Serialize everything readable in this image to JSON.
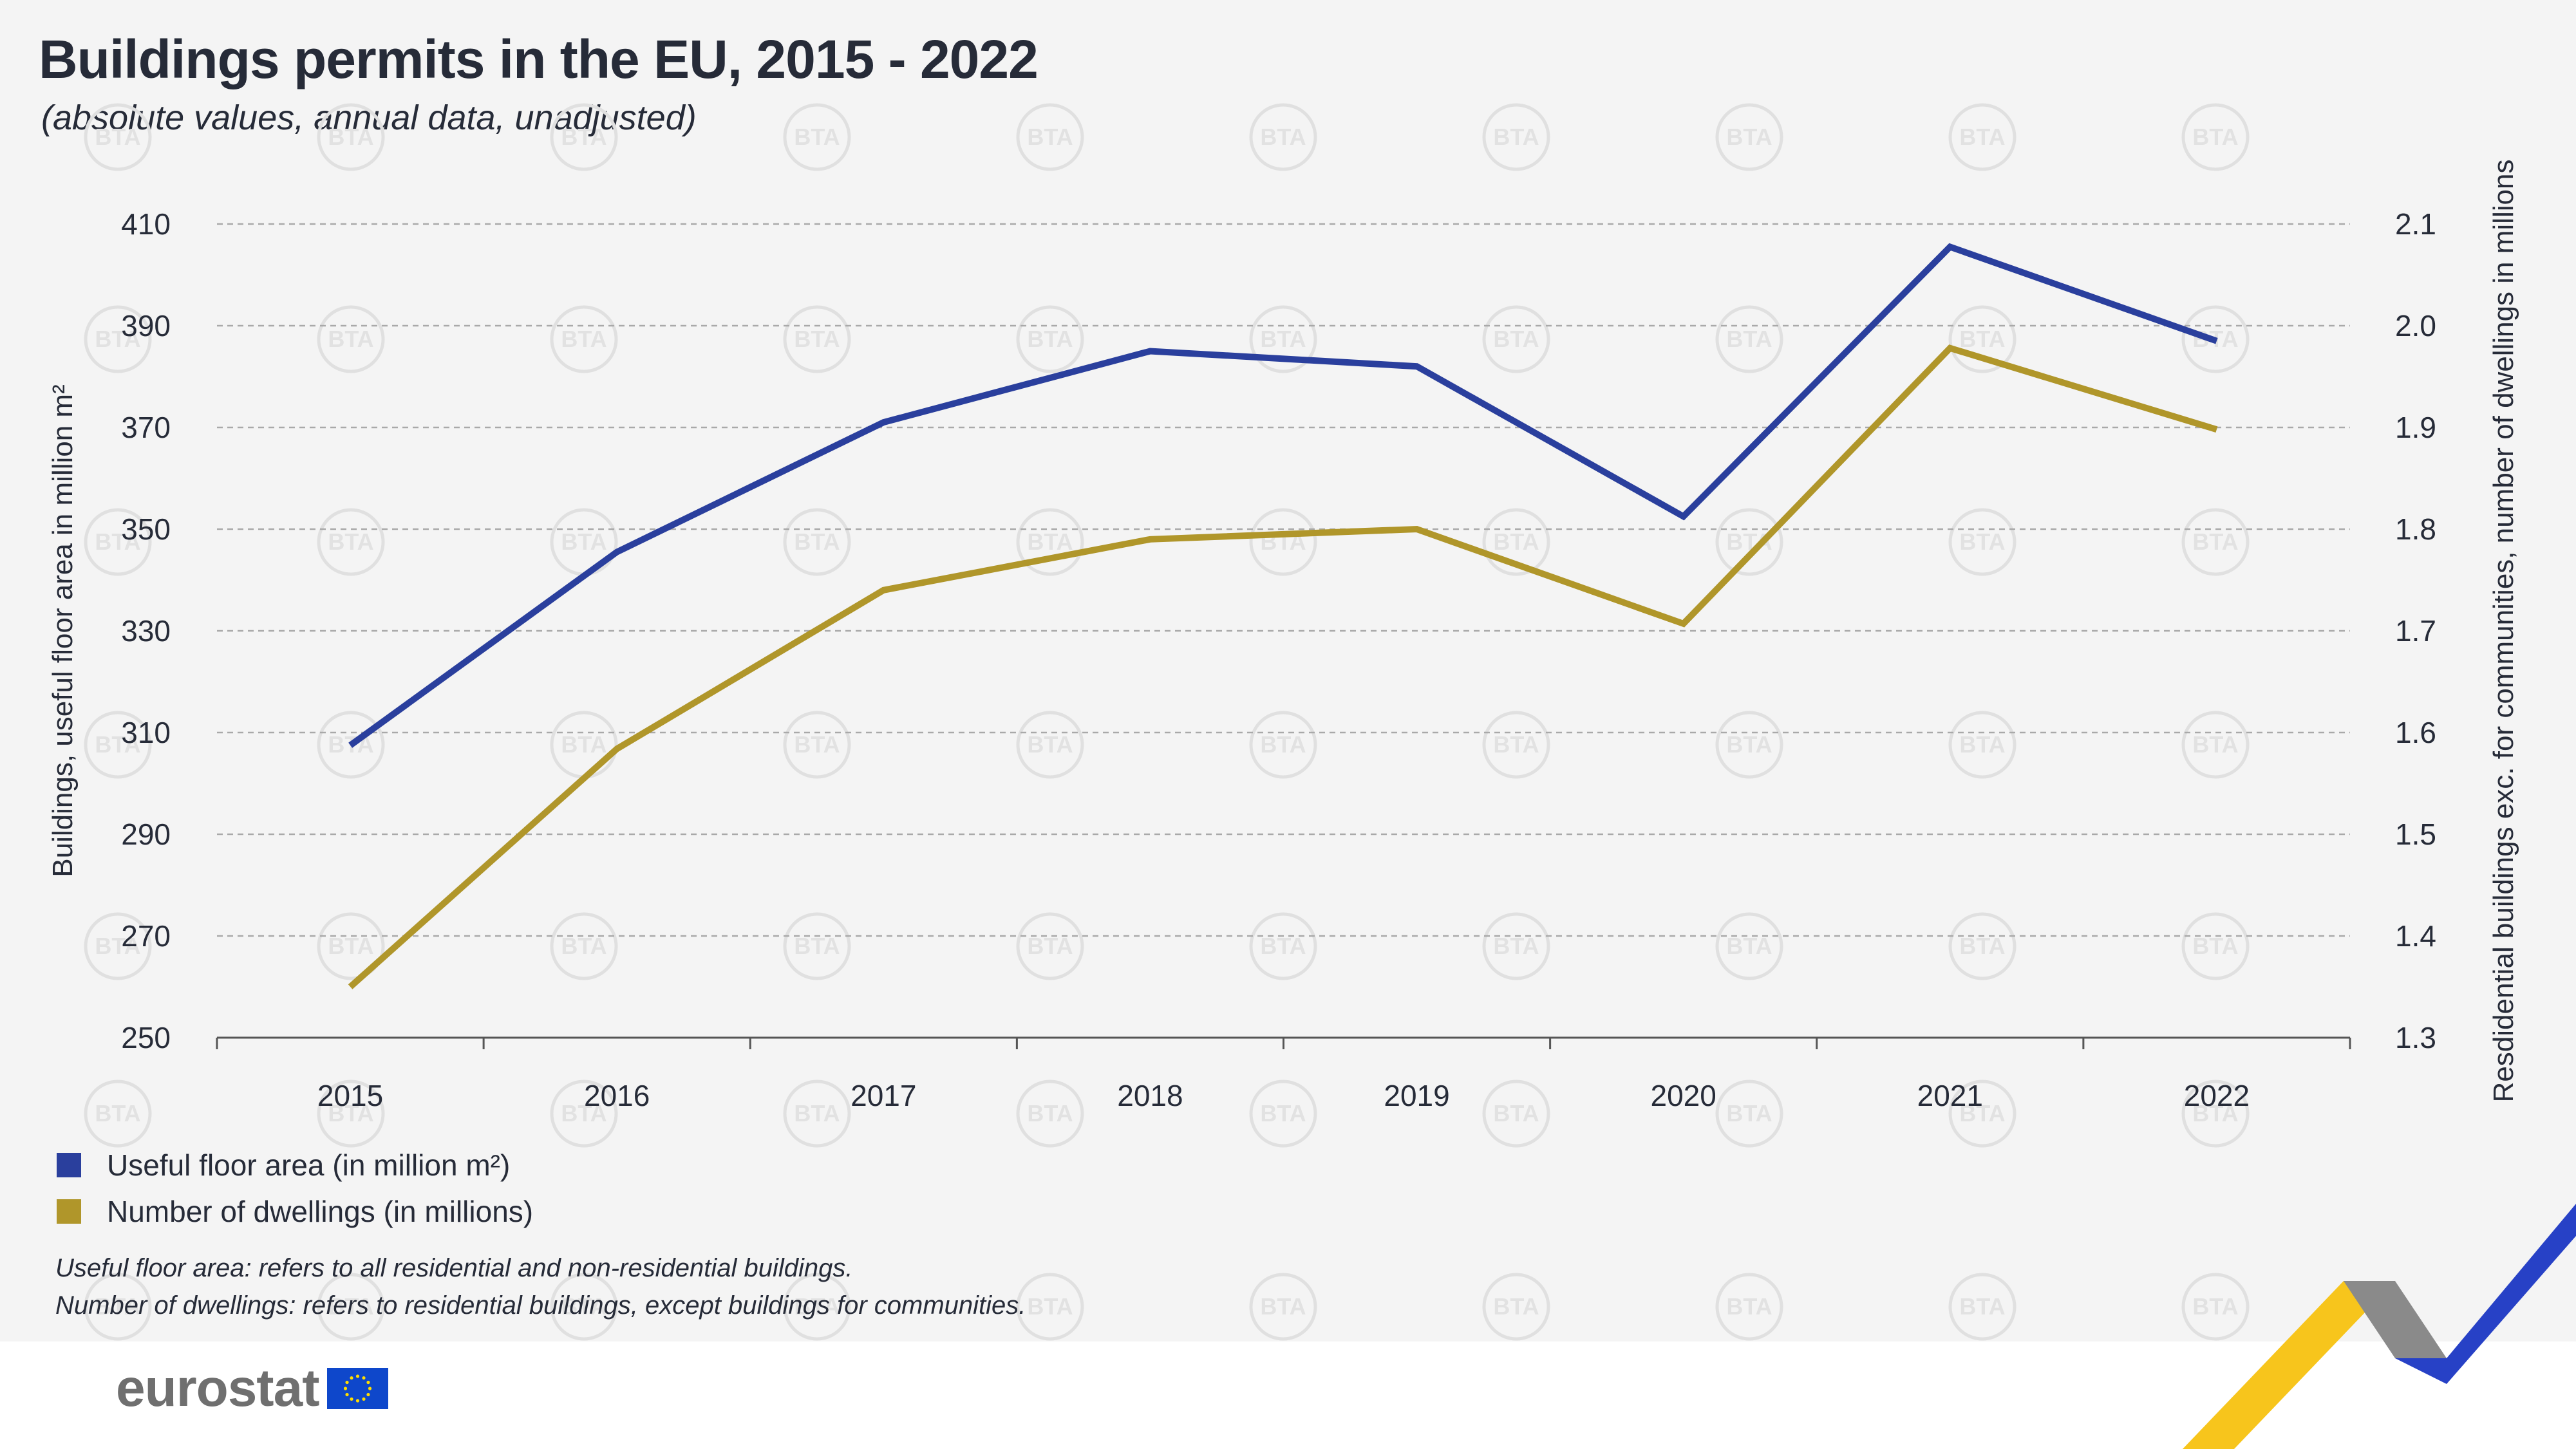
{
  "header": {
    "title": "Buildings permits in the EU, 2015 - 2022",
    "subtitle": "(absolute values, annual data, unadjusted)"
  },
  "chart_data": {
    "type": "line",
    "categories": [
      "2015",
      "2016",
      "2017",
      "2018",
      "2019",
      "2020",
      "2021",
      "2022"
    ],
    "y_left": {
      "label": "Buildings, useful floor area in million m²",
      "range": [
        250,
        410
      ],
      "ticks": [
        "250",
        "270",
        "290",
        "310",
        "330",
        "350",
        "370",
        "390",
        "410"
      ]
    },
    "y_right": {
      "label": "Resdidential buildings exc. for communities, number of dwellings in millions",
      "range": [
        1.3,
        2.1
      ],
      "ticks": [
        "1.3",
        "1.4",
        "1.5",
        "1.6",
        "1.7",
        "1.8",
        "1.9",
        "2.0",
        "2.1"
      ]
    },
    "grid": true,
    "series": [
      {
        "name": "Useful floor area (in million m²)",
        "axis": "left",
        "color": "#2a3f9d",
        "values": [
          307.5,
          345.5,
          371,
          385,
          382,
          352.5,
          405.5,
          387
        ]
      },
      {
        "name": "Number of dwellings (in millions)",
        "axis": "right",
        "color": "#b0962a",
        "values": [
          1.35,
          1.584,
          1.74,
          1.79,
          1.8,
          1.707,
          1.978,
          1.898
        ]
      }
    ]
  },
  "notes": [
    "Useful floor area: refers to all residential and non-residential buildings.",
    "Number of dwellings: refers to residential buildings, except buildings for communities."
  ],
  "footer": {
    "logo_text": "eurostat",
    "flag_icon": "eu-flag-icon",
    "watermark": "BTA"
  }
}
